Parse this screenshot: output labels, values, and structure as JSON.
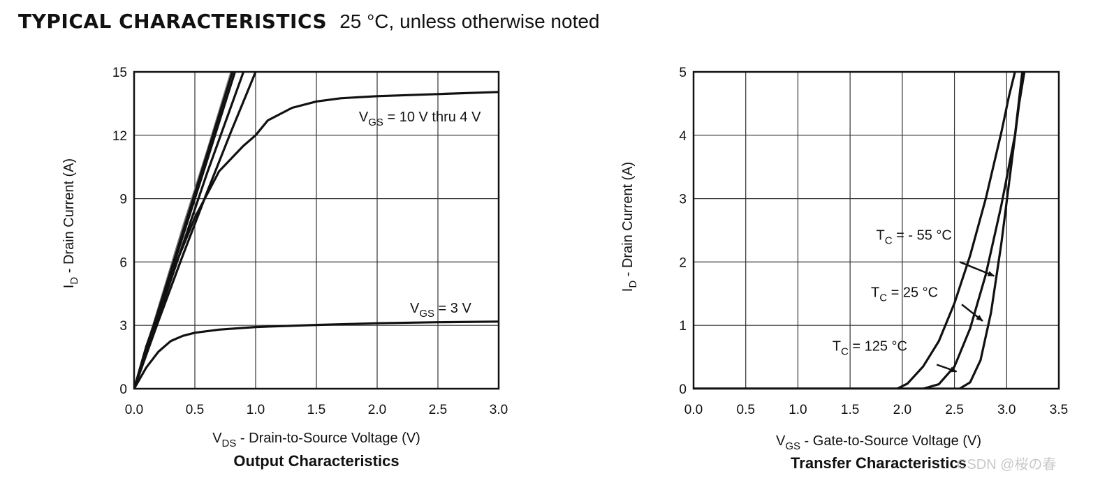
{
  "header": {
    "title": "TYPICAL CHARACTERISTICS",
    "condition": "25 °C, unless otherwise noted"
  },
  "watermark": "CSDN @桜の春",
  "chart_data": [
    {
      "type": "line",
      "title": "Output Characteristics",
      "xlabel": "V_DS - Drain-to-Source Voltage (V)",
      "xlabel_parts": {
        "main": "V",
        "sub": "DS",
        "rest": " - Drain-to-Source Voltage (V)"
      },
      "ylabel": "I_D - Drain Current (A)",
      "ylabel_parts": {
        "main": "I",
        "sub": "D",
        "rest": " - Drain Current (A)"
      },
      "xlim": [
        0,
        3.0
      ],
      "ylim": [
        0,
        15
      ],
      "xticks": [
        "0.0",
        "0.5",
        "1.0",
        "1.5",
        "2.0",
        "2.5",
        "3.0"
      ],
      "yticks": [
        "0",
        "3",
        "6",
        "9",
        "12",
        "15"
      ],
      "grid": true,
      "series": [
        {
          "color": "#777777",
          "points": [
            [
              0,
              0
            ],
            [
              0.2,
              3.8
            ],
            [
              0.4,
              7.6
            ],
            [
              0.6,
              11.2
            ],
            [
              0.8,
              15.0
            ]
          ]
        },
        {
          "color": "#111111",
          "points": [
            [
              0,
              0
            ],
            [
              0.2,
              3.7
            ],
            [
              0.4,
              7.4
            ],
            [
              0.6,
              11.1
            ],
            [
              0.81,
              15.0
            ]
          ]
        },
        {
          "color": "#111111",
          "points": [
            [
              0,
              0
            ],
            [
              0.2,
              3.6
            ],
            [
              0.4,
              7.2
            ],
            [
              0.6,
              10.8
            ],
            [
              0.83,
              15.0
            ]
          ]
        },
        {
          "color": "#111111",
          "points": [
            [
              0,
              0
            ],
            [
              0.2,
              3.4
            ],
            [
              0.4,
              6.8
            ],
            [
              0.6,
              10.2
            ],
            [
              0.8,
              13.4
            ],
            [
              0.9,
              15.0
            ]
          ]
        },
        {
          "color": "#111111",
          "points": [
            [
              0,
              0
            ],
            [
              0.2,
              3.2
            ],
            [
              0.4,
              6.3
            ],
            [
              0.6,
              9.3
            ],
            [
              0.8,
              12.2
            ],
            [
              0.95,
              14.3
            ],
            [
              1.0,
              15.0
            ]
          ]
        },
        {
          "color": "#111111",
          "points": [
            [
              0,
              0
            ],
            [
              0.1,
              2.0
            ],
            [
              0.3,
              5.3
            ],
            [
              0.5,
              8.1
            ],
            [
              0.7,
              10.3
            ],
            [
              0.9,
              11.5
            ],
            [
              1.0,
              12.0
            ],
            [
              1.1,
              12.7
            ],
            [
              1.3,
              13.3
            ],
            [
              1.5,
              13.6
            ],
            [
              1.7,
              13.75
            ],
            [
              2.0,
              13.85
            ],
            [
              2.5,
              13.95
            ],
            [
              3.0,
              14.05
            ]
          ]
        },
        {
          "color": "#111111",
          "points": [
            [
              0,
              0
            ],
            [
              0.1,
              1.0
            ],
            [
              0.2,
              1.75
            ],
            [
              0.3,
              2.25
            ],
            [
              0.4,
              2.5
            ],
            [
              0.5,
              2.65
            ],
            [
              0.7,
              2.8
            ],
            [
              1.0,
              2.92
            ],
            [
              1.5,
              3.02
            ],
            [
              2.0,
              3.1
            ],
            [
              2.5,
              3.15
            ],
            [
              3.0,
              3.18
            ]
          ]
        }
      ],
      "annotations": [
        {
          "main": "V",
          "sub": "GS",
          "rest": " = 10 V thru 4 V",
          "x": 1.85,
          "y": 12.65
        },
        {
          "main": "V",
          "sub": "GS",
          "rest": " = 3 V",
          "x": 2.27,
          "y": 3.6
        }
      ]
    },
    {
      "type": "line",
      "title": "Transfer Characteristics",
      "xlabel": "V_GS - Gate-to-Source Voltage (V)",
      "xlabel_parts": {
        "main": "V",
        "sub": "GS",
        "rest": " - Gate-to-Source Voltage (V)"
      },
      "ylabel": "I_D - Drain Current (A)",
      "ylabel_parts": {
        "main": "I",
        "sub": "D",
        "rest": " - Drain Current (A)"
      },
      "xlim": [
        0,
        3.5
      ],
      "ylim": [
        0,
        5
      ],
      "xticks": [
        "0.0",
        "0.5",
        "1.0",
        "1.5",
        "2.0",
        "2.5",
        "3.0",
        "3.5"
      ],
      "yticks": [
        "0",
        "1",
        "2",
        "3",
        "4",
        "5"
      ],
      "grid": true,
      "series": [
        {
          "name": "T_C = 125 °C",
          "color": "#111111",
          "points": [
            [
              0,
              0
            ],
            [
              1.95,
              0
            ],
            [
              2.05,
              0.08
            ],
            [
              2.2,
              0.35
            ],
            [
              2.35,
              0.75
            ],
            [
              2.5,
              1.35
            ],
            [
              2.65,
              2.1
            ],
            [
              2.8,
              3.0
            ],
            [
              2.95,
              4.05
            ],
            [
              3.02,
              4.6
            ],
            [
              3.08,
              5.0
            ]
          ]
        },
        {
          "name": "T_C = 25 °C",
          "color": "#111111",
          "points": [
            [
              0,
              0
            ],
            [
              2.2,
              0
            ],
            [
              2.35,
              0.07
            ],
            [
              2.5,
              0.35
            ],
            [
              2.65,
              0.95
            ],
            [
              2.8,
              1.8
            ],
            [
              2.95,
              2.9
            ],
            [
              3.08,
              4.0
            ],
            [
              3.15,
              5.0
            ]
          ]
        },
        {
          "name": "T_C = - 55 °C",
          "color": "#111111",
          "points": [
            [
              0,
              0
            ],
            [
              2.55,
              0
            ],
            [
              2.65,
              0.1
            ],
            [
              2.75,
              0.45
            ],
            [
              2.85,
              1.2
            ],
            [
              2.95,
              2.3
            ],
            [
              3.05,
              3.6
            ],
            [
              3.12,
              4.5
            ],
            [
              3.17,
              5.0
            ]
          ]
        }
      ],
      "annotations": [
        {
          "main": "T",
          "sub": "C",
          "rest": " = - 55 °C",
          "x": 1.75,
          "y": 2.35
        },
        {
          "main": "T",
          "sub": "C",
          "rest": " = 25 °C",
          "x": 1.7,
          "y": 1.45
        },
        {
          "main": "T",
          "sub": "C",
          "rest": " = 125 °C",
          "x": 1.33,
          "y": 0.6
        }
      ],
      "arrows": [
        {
          "from": [
            2.55,
            2.0
          ],
          "to": [
            2.88,
            1.78
          ]
        },
        {
          "from": [
            2.57,
            1.33
          ],
          "to": [
            2.77,
            1.07
          ]
        },
        {
          "from": [
            2.33,
            0.38
          ],
          "to": [
            2.52,
            0.27
          ]
        }
      ]
    }
  ]
}
